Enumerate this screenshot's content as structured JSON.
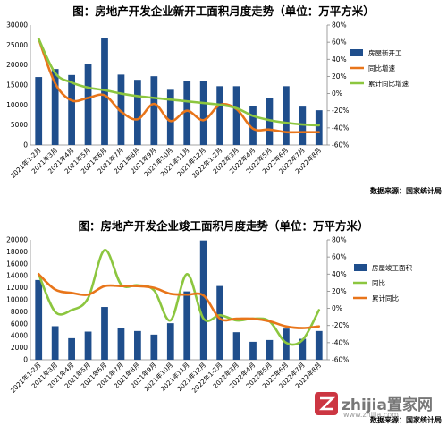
{
  "chart_data": [
    {
      "type": "bar",
      "title": "图：房地产开发企业新开工面积月度走势（单位：万平方米）",
      "source": "数据来源：国家统计局",
      "categories": [
        "2021年1-2月",
        "2021年3月",
        "2021年4月",
        "2021年5月",
        "2021年6月",
        "2021年7月",
        "2021年8月",
        "2021年9月",
        "2021年10月",
        "2021年11月",
        "2021年12月",
        "2022年1-2月",
        "2022年3月",
        "2022年4月",
        "2022年5月",
        "2022年6月",
        "2022年7月",
        "2022年8月"
      ],
      "y_left": {
        "ticks": [
          "0",
          "5000",
          "10000",
          "15000",
          "20000",
          "25000",
          "30000"
        ],
        "min": 0,
        "max": 30000
      },
      "y_right": {
        "ticks": [
          "-60%",
          "-40%",
          "-20%",
          "0%",
          "20%",
          "40%",
          "60%",
          "80%"
        ],
        "min": -60,
        "max": 80
      },
      "series": [
        {
          "name": "房屋新开工",
          "kind": "bar",
          "axis": "left",
          "color": "#1f4e8c",
          "values": [
            17000,
            19000,
            17500,
            20300,
            26800,
            17600,
            16300,
            17200,
            13800,
            15900,
            15900,
            14700,
            14700,
            9800,
            11800,
            14700,
            9600,
            8700
          ]
        },
        {
          "name": "同比增速",
          "kind": "line",
          "axis": "right",
          "color": "#e8751a",
          "values": [
            64,
            12,
            -8,
            -5,
            -2,
            -21,
            -30,
            -12,
            -32,
            -20,
            -31,
            -13,
            -18,
            -41,
            -42,
            -45,
            -45,
            -45
          ]
        },
        {
          "name": "累计同比增速",
          "kind": "line",
          "axis": "right",
          "color": "#8cc63f",
          "values": [
            64,
            24,
            13,
            7,
            4,
            0,
            -3,
            -5,
            -7,
            -9,
            -11,
            -13,
            -17,
            -26,
            -31,
            -34,
            -36,
            -37
          ]
        }
      ]
    },
    {
      "type": "bar",
      "title": "图：房地产开发企业竣工面积月度走势（单位：万平方米）",
      "source": "数据来源：国家统计局",
      "categories": [
        "2021年1-2月",
        "2021年3月",
        "2021年4月",
        "2021年5月",
        "2021年6月",
        "2021年7月",
        "2021年8月",
        "2021年9月",
        "2021年10月",
        "2021年11月",
        "2021年12月",
        "2022年1-2月",
        "2022年3月",
        "2022年4月",
        "2022年5月",
        "2022年6月",
        "2022年7月",
        "2022年8月"
      ],
      "y_left": {
        "ticks": [
          "0",
          "2000",
          "4000",
          "6000",
          "8000",
          "10000",
          "12000",
          "14000",
          "16000",
          "18000",
          "20000"
        ],
        "min": 0,
        "max": 20000
      },
      "y_right": {
        "ticks": [
          "-60%",
          "-40%",
          "-20%",
          "0%",
          "20%",
          "40%",
          "60%",
          "80%"
        ],
        "min": -60,
        "max": 80
      },
      "series": [
        {
          "name": "房屋竣工面积",
          "kind": "bar",
          "axis": "left",
          "color": "#1f4e8c",
          "values": [
            13300,
            5600,
            3600,
            4700,
            8800,
            5300,
            4800,
            4200,
            6100,
            11400,
            19900,
            12300,
            4600,
            3000,
            3300,
            5200,
            3500,
            4800
          ]
        },
        {
          "name": "同比",
          "kind": "line",
          "axis": "right",
          "color": "#8cc63f",
          "values": [
            40,
            -4,
            -2,
            12,
            68,
            28,
            27,
            21,
            -14,
            40,
            -12,
            -8,
            -14,
            -12,
            -15,
            -40,
            -37,
            -2
          ]
        },
        {
          "name": "累计同比",
          "kind": "line",
          "axis": "right",
          "color": "#e8751a",
          "values": [
            40,
            22,
            18,
            16,
            26,
            26,
            26,
            24,
            17,
            16,
            15,
            -12,
            -12,
            -12,
            -15,
            -21,
            -23,
            -21
          ]
        }
      ]
    }
  ],
  "watermark": {
    "text": "zhijia置家网",
    "sub": "www.zhijia.com"
  }
}
